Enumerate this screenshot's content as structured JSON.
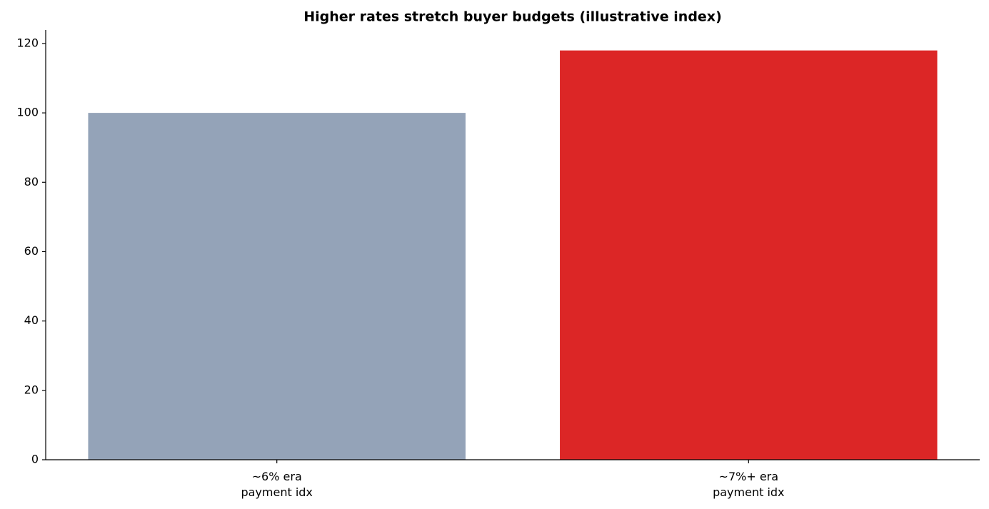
{
  "chart_data": {
    "type": "bar",
    "title": "Higher rates stretch buyer budgets (illustrative index)",
    "categories": [
      "~6% era\npayment idx",
      "~7%+ era\npayment idx"
    ],
    "values": [
      100,
      118
    ],
    "colors": [
      "#94a3b8",
      "#dc2626"
    ],
    "ylim": [
      0,
      123.9
    ],
    "yticks": [
      0,
      20,
      40,
      60,
      80,
      100,
      120
    ]
  }
}
